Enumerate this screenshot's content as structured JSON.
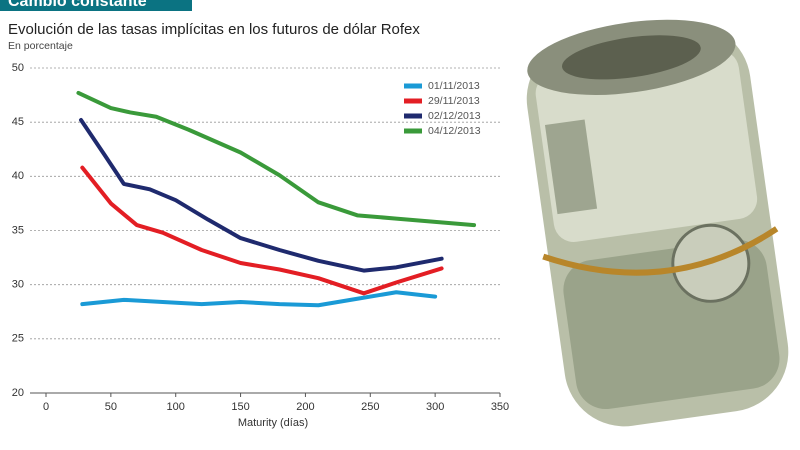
{
  "header": "Cambio constante",
  "chart_data": {
    "type": "line",
    "title": "Evolución de las tasas implícitas en los futuros de dólar Rofex",
    "subtitle": "En porcentaje",
    "x_label": "Maturity (días)",
    "xlim": [
      0,
      350
    ],
    "xticks": [
      0,
      50,
      100,
      150,
      200,
      250,
      300,
      350
    ],
    "ylim": [
      20,
      50
    ],
    "yticks": [
      20,
      25,
      30,
      35,
      40,
      45,
      50
    ],
    "grid": true,
    "legend": "upper right",
    "series": [
      {
        "name": "01/11/2013",
        "color": "#1a9ad6",
        "x": [
          28,
          60,
          90,
          120,
          150,
          180,
          210,
          240,
          270,
          300
        ],
        "values": [
          28.2,
          28.6,
          28.4,
          28.2,
          28.4,
          28.2,
          28.1,
          28.7,
          29.3,
          28.9
        ]
      },
      {
        "name": "29/11/2013",
        "color": "#e31e24",
        "x": [
          28,
          50,
          70,
          90,
          120,
          150,
          180,
          210,
          245,
          270,
          305
        ],
        "values": [
          40.8,
          37.5,
          35.5,
          34.8,
          33.2,
          32.0,
          31.4,
          30.6,
          29.2,
          30.2,
          31.5
        ]
      },
      {
        "name": "02/12/2013",
        "color": "#1f2a6e",
        "x": [
          27,
          45,
          60,
          80,
          100,
          125,
          150,
          180,
          210,
          245,
          270,
          305
        ],
        "values": [
          45.2,
          42,
          39.3,
          38.8,
          37.8,
          36,
          34.3,
          33.2,
          32.2,
          31.3,
          31.6,
          32.4
        ]
      },
      {
        "name": "04/12/2013",
        "color": "#3a9a3a",
        "x": [
          25,
          50,
          65,
          85,
          110,
          150,
          180,
          210,
          240,
          270,
          300,
          330
        ],
        "values": [
          47.7,
          46.3,
          45.9,
          45.5,
          44.3,
          42.2,
          40.1,
          37.6,
          36.4,
          36.1,
          35.8,
          35.5
        ]
      }
    ]
  }
}
